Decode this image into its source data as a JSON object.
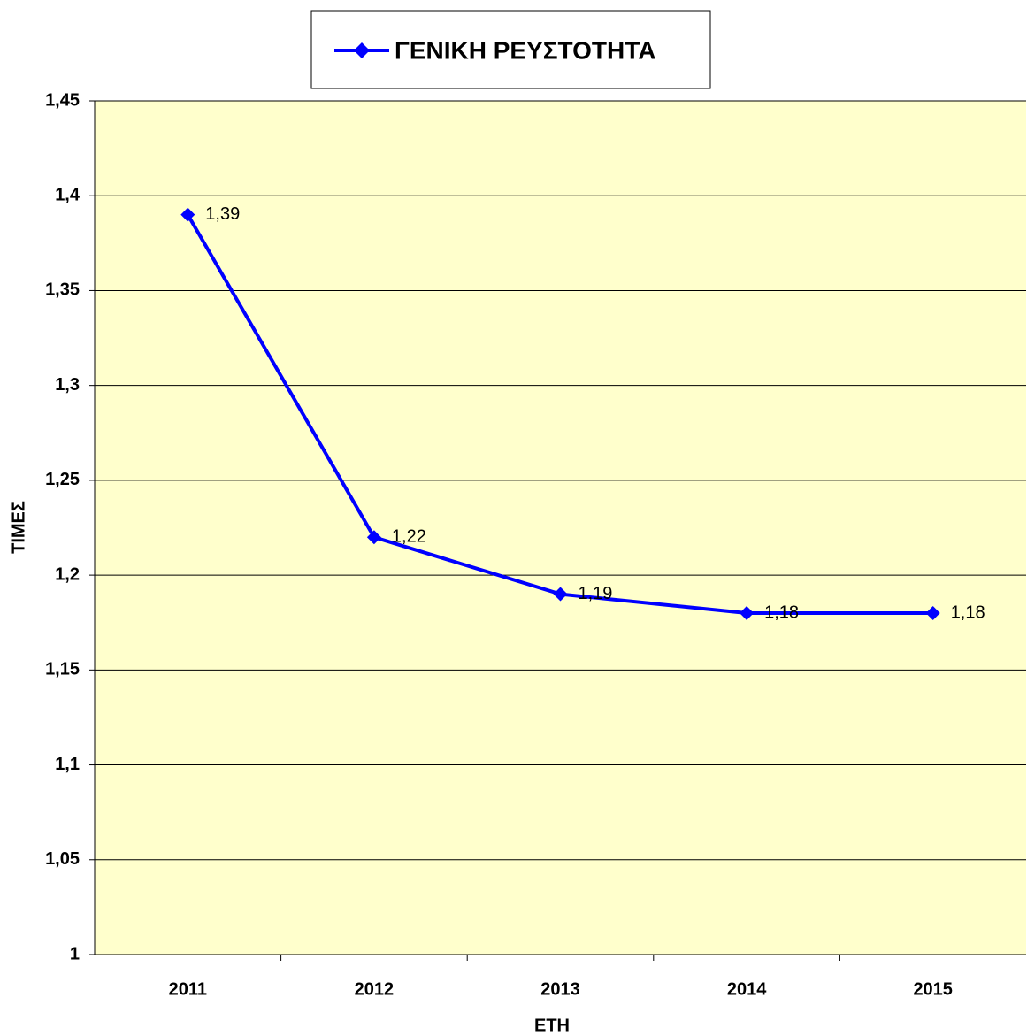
{
  "chart_data": {
    "type": "line",
    "x_label": "ΕΤΗ",
    "y_label": "ΤΙΜΕΣ",
    "categories": [
      "2011",
      "2012",
      "2013",
      "2014",
      "2015"
    ],
    "series": [
      {
        "name": "ΓΕΝΙΚΗ ΡΕΥΣΤΟΤΗΤΑ",
        "color": "#0000ff",
        "values": [
          1.39,
          1.22,
          1.19,
          1.18,
          1.18
        ],
        "value_labels": [
          "1,39",
          "1,22",
          "1,19",
          "1,18",
          "1,18"
        ]
      }
    ],
    "ylim": [
      1,
      1.45
    ],
    "yticks": [
      1,
      {
        "value": 1.05,
        "label": "1,05"
      },
      {
        "value": 1.1,
        "label": "1,1"
      },
      {
        "value": 1.15,
        "label": "1,15"
      },
      {
        "value": 1.2,
        "label": "1,2"
      },
      {
        "value": 1.25,
        "label": "1,25"
      },
      {
        "value": 1.3,
        "label": "1,3"
      },
      {
        "value": 1.35,
        "label": "1,35"
      },
      {
        "value": 1.4,
        "label": "1,4"
      },
      {
        "value": 1.45,
        "label": "1,45"
      }
    ],
    "grid": true,
    "plot_background": "#ffffcc",
    "legend": "top"
  }
}
